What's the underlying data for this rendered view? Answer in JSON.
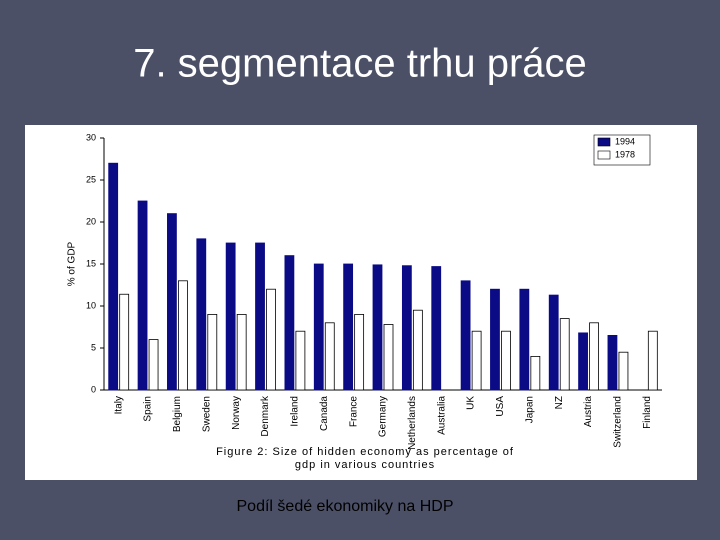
{
  "slide": {
    "title": "7. segmentace trhu práce",
    "footer": "Podíl šedé ekonomiky na HDP"
  },
  "chart_data": {
    "type": "bar",
    "caption": [
      "Figure 2: Size of hidden economy as percentage of",
      "gdp in various countries"
    ],
    "y_label": "% of GDP",
    "categories": [
      "Italy",
      "Spain",
      "Belgium",
      "Sweden",
      "Norway",
      "Denmark",
      "Ireland",
      "Canada",
      "France",
      "Germany",
      "Netherlands",
      "Australia",
      "UK",
      "USA",
      "Japan",
      "NZ",
      "Austria",
      "Switzerland",
      "Finland"
    ],
    "series": [
      {
        "name": "1994",
        "color": "#0b0b86",
        "values": [
          27,
          22.5,
          21,
          18,
          17.5,
          17.5,
          16,
          15,
          15,
          14.9,
          14.8,
          14.7,
          13,
          12,
          12,
          11.3,
          6.8,
          6.5,
          null
        ]
      },
      {
        "name": "1978",
        "color": "#ffffff",
        "values": [
          11.4,
          6,
          13,
          9,
          9,
          12,
          7,
          8,
          9,
          7.8,
          9.5,
          null,
          7,
          7,
          4,
          8.5,
          8,
          4.5,
          7
        ]
      }
    ],
    "ylim": [
      0,
      30
    ],
    "yticks": [
      0,
      5,
      10,
      15,
      20,
      25,
      30
    ],
    "legend": "top-right"
  }
}
